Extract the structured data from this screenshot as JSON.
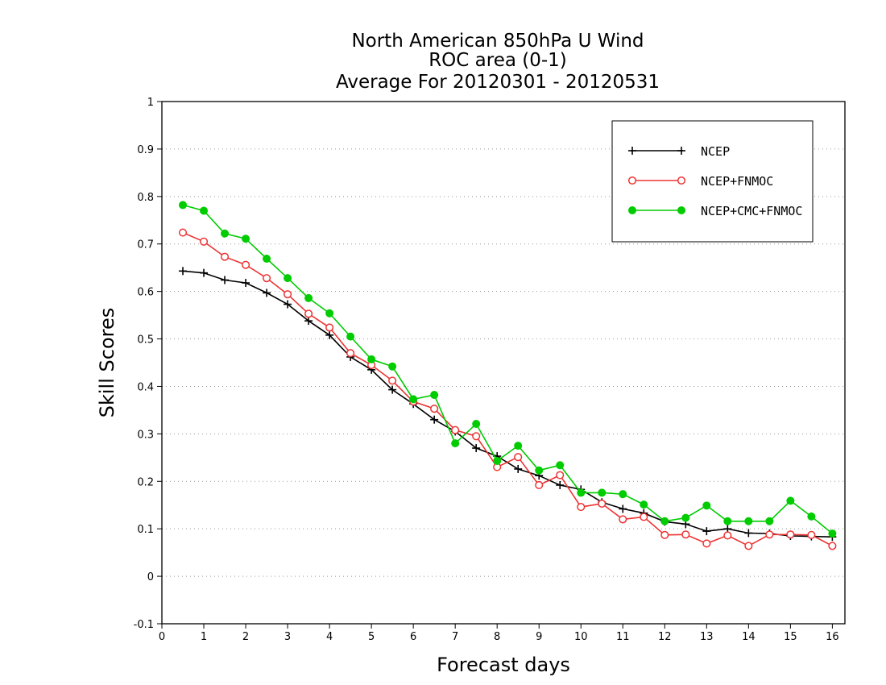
{
  "chart_data": {
    "type": "line",
    "title_lines": [
      "North American 850hPa U Wind",
      "ROC area (0-1)",
      "Average For 20120301 - 20120531"
    ],
    "xlabel": "Forecast days",
    "ylabel": "Skill Scores",
    "xlim": [
      0,
      16.3
    ],
    "ylim": [
      -0.1,
      1
    ],
    "x_ticks": [
      0,
      1,
      2,
      3,
      4,
      5,
      6,
      7,
      8,
      9,
      10,
      11,
      12,
      13,
      14,
      15,
      16
    ],
    "x_tick_labels": [
      "0",
      "1",
      "2",
      "3",
      "4",
      "5",
      "6",
      "7",
      "8",
      "9",
      "10",
      "11",
      "12",
      "13",
      "14",
      "15",
      "16"
    ],
    "y_ticks": [
      -0.1,
      0,
      0.1,
      0.2,
      0.3,
      0.4,
      0.5,
      0.6,
      0.7,
      0.8,
      0.9,
      1
    ],
    "y_tick_labels": [
      "-0.1",
      "0",
      "0.1",
      "0.2",
      "0.3",
      "0.4",
      "0.5",
      "0.6",
      "0.7",
      "0.8",
      "0.9",
      "1"
    ],
    "grid": "horizontal dotted",
    "legend_position": "top-right",
    "x": [
      0.5,
      1.0,
      1.5,
      2.0,
      2.5,
      3.0,
      3.5,
      4.0,
      4.5,
      5.0,
      5.5,
      6.0,
      6.5,
      7.0,
      7.5,
      8.0,
      8.5,
      9.0,
      9.5,
      10.0,
      10.5,
      11.0,
      11.5,
      12.0,
      12.5,
      13.0,
      13.5,
      14.0,
      14.5,
      15.0,
      15.5,
      16.0
    ],
    "series": [
      {
        "name": "NCEP",
        "color": "#000000",
        "marker": "plus",
        "values": [
          0.643,
          0.639,
          0.624,
          0.618,
          0.597,
          0.573,
          0.538,
          0.508,
          0.462,
          0.435,
          0.393,
          0.363,
          0.33,
          0.305,
          0.27,
          0.253,
          0.226,
          0.212,
          0.192,
          0.183,
          0.156,
          0.142,
          0.133,
          0.115,
          0.11,
          0.095,
          0.1,
          0.091,
          0.09,
          0.085,
          0.084,
          0.083
        ]
      },
      {
        "name": "NCEP+FNMOC",
        "color": "#ee3333",
        "marker": "open-circle",
        "values": [
          0.724,
          0.705,
          0.673,
          0.656,
          0.628,
          0.594,
          0.553,
          0.524,
          0.47,
          0.445,
          0.412,
          0.368,
          0.353,
          0.308,
          0.295,
          0.23,
          0.251,
          0.192,
          0.213,
          0.146,
          0.153,
          0.12,
          0.125,
          0.087,
          0.088,
          0.069,
          0.086,
          0.064,
          0.088,
          0.088,
          0.087,
          0.064
        ]
      },
      {
        "name": "NCEP+CMC+FNMOC",
        "color": "#00cc00",
        "marker": "filled-circle",
        "values": [
          0.782,
          0.77,
          0.722,
          0.711,
          0.669,
          0.628,
          0.586,
          0.554,
          0.505,
          0.457,
          0.442,
          0.373,
          0.382,
          0.28,
          0.321,
          0.243,
          0.275,
          0.223,
          0.234,
          0.176,
          0.176,
          0.173,
          0.151,
          0.116,
          0.123,
          0.149,
          0.116,
          0.116,
          0.116,
          0.159,
          0.126,
          0.09
        ]
      }
    ]
  }
}
